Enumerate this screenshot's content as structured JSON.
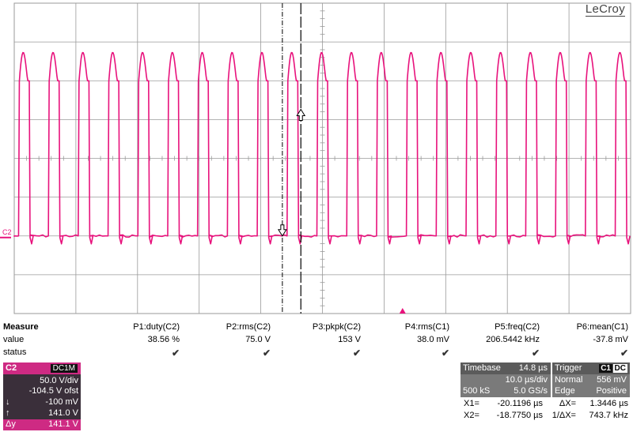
{
  "brand": "LeCroy",
  "channel_marker": "C2",
  "colors": {
    "trace": "#e8127c",
    "grid": "#9a9a9a",
    "channel_box": "#ce2a83"
  },
  "measure": {
    "title": "Measure",
    "row_value_label": "value",
    "row_status_label": "status",
    "params": [
      {
        "name": "P1:duty(C2)",
        "value": "38.56 %"
      },
      {
        "name": "P2:rms(C2)",
        "value": "75.0 V"
      },
      {
        "name": "P3:pkpk(C2)",
        "value": "153 V"
      },
      {
        "name": "P4:rms(C1)",
        "value": "38.0 mV"
      },
      {
        "name": "P5:freq(C2)",
        "value": "206.5442 kHz"
      },
      {
        "name": "P6:mean(C1)",
        "value": "-37.8 mV"
      }
    ],
    "status_mark": "✔"
  },
  "channel": {
    "name": "C2",
    "coupling": "DC1M",
    "vdiv": "50.0 V/div",
    "offset": "-104.5 V ofst",
    "cursor_low_icon": "↓",
    "cursor_low": "-100 mV",
    "cursor_high_icon": "↑",
    "cursor_high": "141.0 V",
    "delta_label": "Δy",
    "delta": "141.1 V"
  },
  "timebase": {
    "label": "Timebase",
    "delay": "14.8 µs",
    "tdiv": "10.0 µs/div",
    "samples": "500 kS",
    "rate": "5.0 GS/s"
  },
  "trigger": {
    "label": "Trigger",
    "ch1": "C1",
    "ch2": "DC",
    "mode": "Normal",
    "level": "556 mV",
    "type": "Edge",
    "slope": "Positive"
  },
  "cursors": {
    "x1_label": "X1=",
    "x1": "-20.1196 µs",
    "dx_label": "ΔX=",
    "dx": "1.3446 µs",
    "x2_label": "X2=",
    "x2": "-18.7750 µs",
    "inv_dx_label": "1/ΔX=",
    "inv_dx": "743.7 kHz"
  },
  "chart_data": {
    "type": "line",
    "x_divisions": 10,
    "y_divisions": 8,
    "period_div": 0.484,
    "duty": 0.3856,
    "high_div": 2.0,
    "peak_div": 2.85,
    "low_div": -2.0,
    "cursor_x1_div": 4.35,
    "cursor_x2_div": 4.65,
    "trigger_pos_div": 6.3
  }
}
